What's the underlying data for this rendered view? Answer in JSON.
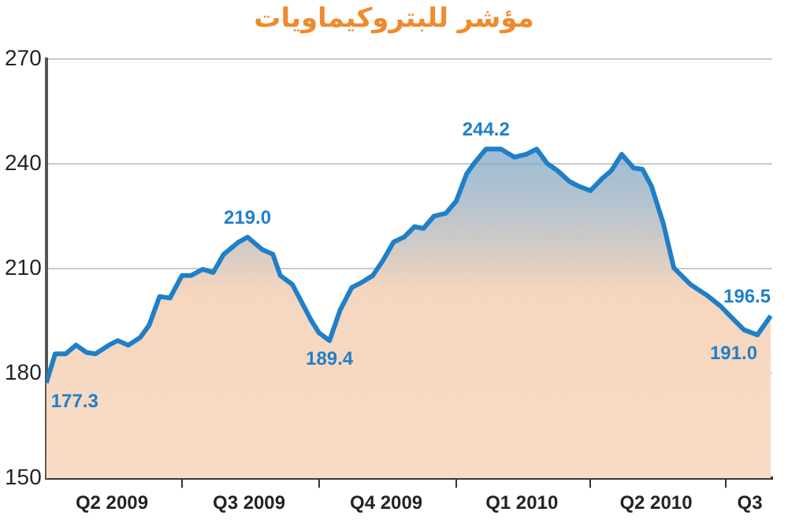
{
  "chart_data": {
    "type": "area",
    "title": "مؤشر للبتروكيماويات",
    "x": [
      "2009-04-01",
      "2009-04-07",
      "2009-04-14",
      "2009-04-21",
      "2009-04-28",
      "2009-05-04",
      "2009-05-13",
      "2009-05-19",
      "2009-05-26",
      "2009-06-03",
      "2009-06-09",
      "2009-06-16",
      "2009-06-23",
      "2009-07-01",
      "2009-07-07",
      "2009-07-15",
      "2009-07-22",
      "2009-07-29",
      "2009-08-08",
      "2009-08-14",
      "2009-08-24",
      "2009-08-31",
      "2009-09-05",
      "2009-09-13",
      "2009-09-26",
      "2009-10-01",
      "2009-10-08",
      "2009-10-15",
      "2009-10-23",
      "2009-10-29",
      "2009-11-06",
      "2009-11-13",
      "2009-11-20",
      "2009-11-27",
      "2009-12-04",
      "2009-12-10",
      "2009-12-17",
      "2009-12-25",
      "2010-01-01",
      "2010-01-08",
      "2010-01-13",
      "2010-01-21",
      "2010-01-31",
      "2010-02-09",
      "2010-02-17",
      "2010-02-24",
      "2010-03-03",
      "2010-03-10",
      "2010-03-18",
      "2010-03-24",
      "2010-04-01",
      "2010-04-09",
      "2010-04-15",
      "2010-04-22",
      "2010-04-30",
      "2010-05-06",
      "2010-05-12",
      "2010-05-20",
      "2010-05-27",
      "2010-06-07",
      "2010-06-18",
      "2010-06-27",
      "2010-07-05",
      "2010-07-13",
      "2010-07-22",
      "2010-07-31"
    ],
    "series": [
      {
        "color": "#1f7fc8",
        "values": [
          177.3,
          185.6,
          185.6,
          188.1,
          186,
          185.6,
          188.1,
          189.4,
          188.1,
          190.3,
          193.8,
          202,
          201.6,
          208,
          208,
          209.8,
          208.9,
          214.1,
          217.6,
          219.0,
          215.4,
          214.1,
          208,
          205.5,
          195,
          191.6,
          189.4,
          198,
          204.6,
          205.9,
          208,
          212.4,
          217.6,
          219,
          222,
          221.5,
          225,
          225.8,
          229.3,
          237.1,
          240.1,
          244.2,
          244.2,
          241.9,
          242.7,
          244.2,
          240.1,
          238,
          234.9,
          233.6,
          232.3,
          235.8,
          238,
          242.7,
          238.8,
          238.4,
          233.6,
          222.8,
          210.2,
          205.5,
          202.4,
          199.4,
          195.9,
          192.5,
          191.0,
          196.5
        ]
      }
    ],
    "xlim": [
      "2009-04-01",
      "2010-08-01"
    ],
    "xticks": [
      {
        "value": "2009-05-15",
        "label": "Q2 2009"
      },
      {
        "value": "2009-07-01",
        "label": null
      },
      {
        "value": "2009-08-15",
        "label": "Q3 2009"
      },
      {
        "value": "2009-10-01",
        "label": null
      },
      {
        "value": "2009-11-15",
        "label": "Q4 2009"
      },
      {
        "value": "2010-01-01",
        "label": null
      },
      {
        "value": "2010-02-14",
        "label": "Q1 2010"
      },
      {
        "value": "2010-04-01",
        "label": null
      },
      {
        "value": "2010-05-15",
        "label": "Q2 2010"
      },
      {
        "value": "2010-07-01",
        "label": null
      },
      {
        "value": "2010-07-17",
        "label": "Q3"
      }
    ],
    "ylim": [
      150,
      270
    ],
    "yticks": [
      150,
      180,
      210,
      240,
      270
    ],
    "grid": "y",
    "annotations": [
      {
        "text": "177.3",
        "x": "2009-04-01",
        "y": 177.3
      },
      {
        "text": "219.0",
        "x": "2009-08-14",
        "y": 219.0
      },
      {
        "text": "189.4",
        "x": "2009-10-08",
        "y": 189.4
      },
      {
        "text": "244.2",
        "x": "2010-01-21",
        "y": 244.2
      },
      {
        "text": "191.0",
        "x": "2010-07-22",
        "y": 191.0
      },
      {
        "text": "196.5",
        "x": "2010-07-31",
        "y": 196.5
      }
    ]
  }
}
